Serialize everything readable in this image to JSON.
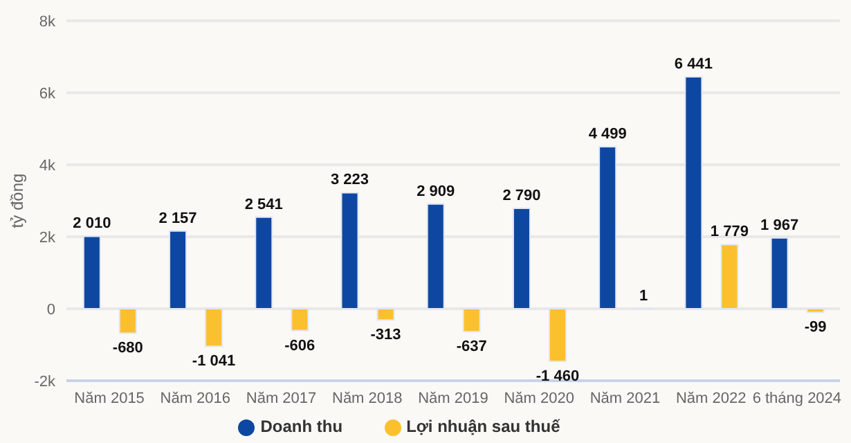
{
  "chart_data": {
    "type": "bar",
    "ylabel": "tỷ đồng",
    "categories": [
      "Năm 2015",
      "Năm 2016",
      "Năm 2017",
      "Năm 2018",
      "Năm 2019",
      "Năm 2020",
      "Năm 2021",
      "Năm 2022",
      "6 tháng 2024"
    ],
    "series": [
      {
        "name": "Doanh thu",
        "color": "#0d47a1",
        "values": [
          2010,
          2157,
          2541,
          3223,
          2909,
          2790,
          4499,
          6441,
          1967
        ],
        "value_labels": [
          "2 010",
          "2 157",
          "2 541",
          "3 223",
          "2 909",
          "2 790",
          "4 499",
          "6 441",
          "1 967"
        ]
      },
      {
        "name": "Lợi nhuận sau thuế",
        "color": "#fbc02d",
        "values": [
          -680,
          -1041,
          -606,
          -313,
          -637,
          -1460,
          1,
          1779,
          -99
        ],
        "value_labels": [
          "-680",
          "-1 041",
          "-606",
          "-313",
          "-637",
          "-1 460",
          "1",
          "1 779",
          "-99"
        ]
      }
    ],
    "ylim": [
      -2000,
      8000
    ],
    "yticks": [
      {
        "value": -2000,
        "label": "-2k"
      },
      {
        "value": 0,
        "label": "0"
      },
      {
        "value": 2000,
        "label": "2k"
      },
      {
        "value": 4000,
        "label": "4k"
      },
      {
        "value": 6000,
        "label": "6k"
      },
      {
        "value": 8000,
        "label": "8k"
      }
    ],
    "grid": "y",
    "legend": "bottom"
  }
}
